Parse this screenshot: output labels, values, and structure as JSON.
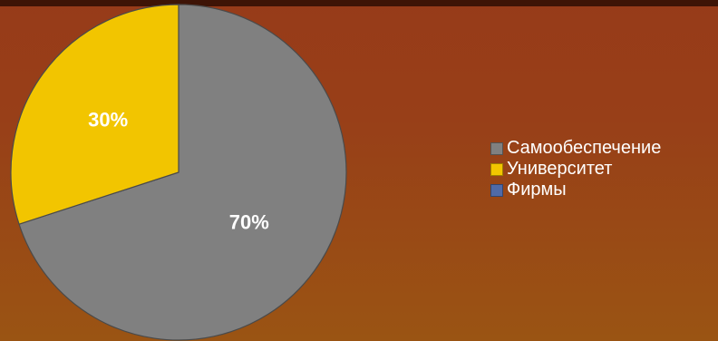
{
  "colors": {
    "background_top": "#973b19",
    "background_bottom": "#9a5413",
    "top_bar": "#3e1406"
  },
  "chart_data": {
    "type": "pie",
    "title": "",
    "slices": [
      {
        "name": "Самообеспечение",
        "value": 70,
        "label": "70%",
        "color": "#808080"
      },
      {
        "name": "Университет",
        "value": 30,
        "label": "30%",
        "color": "#f2c500"
      },
      {
        "name": "Фирмы",
        "value": 0,
        "label": "",
        "color": "#4f6aa8"
      }
    ],
    "legend": {
      "placement": "right",
      "entries": [
        "Самообеспечение",
        "Университет",
        "Фирмы"
      ]
    }
  }
}
